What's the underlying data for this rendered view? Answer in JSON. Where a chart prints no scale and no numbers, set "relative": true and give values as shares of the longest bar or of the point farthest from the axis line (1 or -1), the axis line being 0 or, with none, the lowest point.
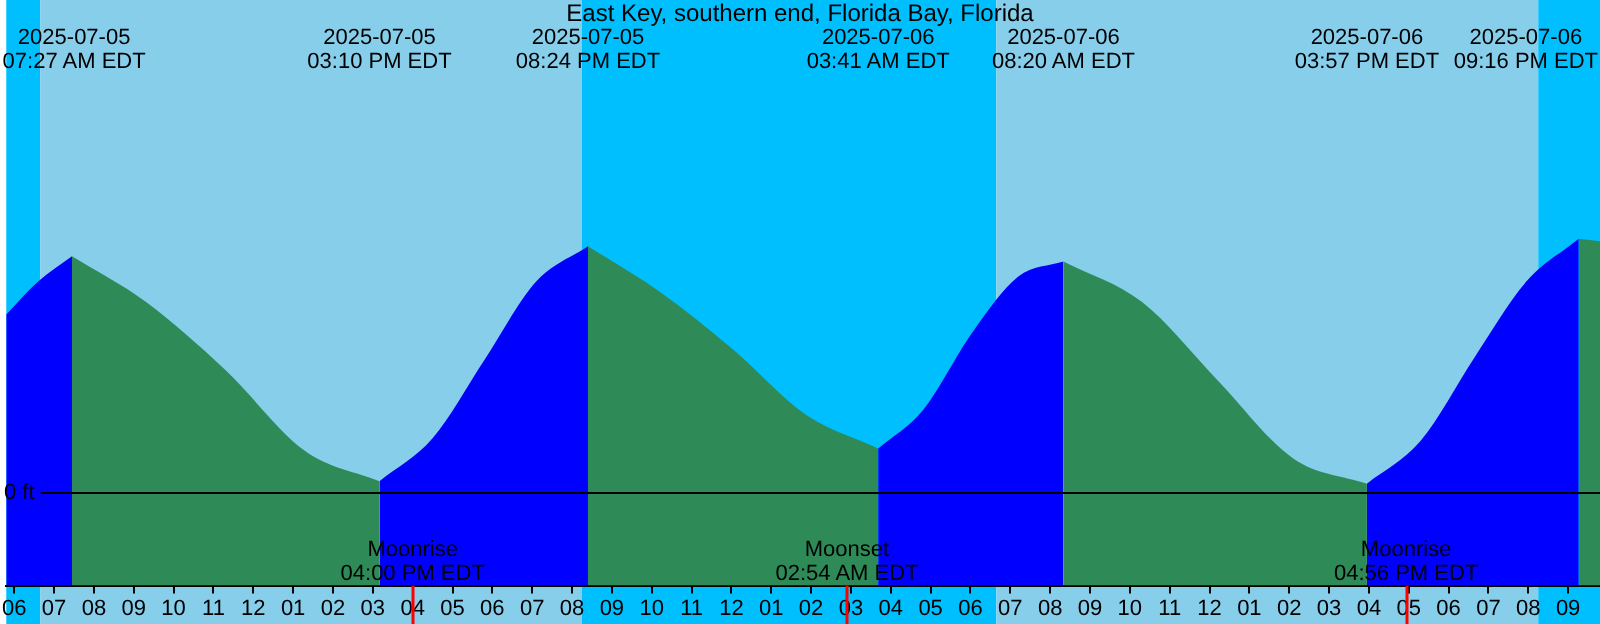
{
  "chart_data": {
    "type": "area",
    "title": "East Key, southern end, Florida Bay, Florida",
    "relative": true,
    "xlim": [
      "2025-07-05T05:48",
      "2025-07-06T21:48"
    ],
    "xticks": [
      {
        "value": "2025-07-05T06:00",
        "label": "06"
      },
      {
        "value": "2025-07-05T07:00",
        "label": "07"
      },
      {
        "value": "2025-07-05T08:00",
        "label": "08"
      },
      {
        "value": "2025-07-05T09:00",
        "label": "09"
      },
      {
        "value": "2025-07-05T10:00",
        "label": "10"
      },
      {
        "value": "2025-07-05T11:00",
        "label": "11"
      },
      {
        "value": "2025-07-05T12:00",
        "label": "12"
      },
      {
        "value": "2025-07-05T13:00",
        "label": "01"
      },
      {
        "value": "2025-07-05T14:00",
        "label": "02"
      },
      {
        "value": "2025-07-05T15:00",
        "label": "03"
      },
      {
        "value": "2025-07-05T16:00",
        "label": "04"
      },
      {
        "value": "2025-07-05T17:00",
        "label": "05"
      },
      {
        "value": "2025-07-05T18:00",
        "label": "06"
      },
      {
        "value": "2025-07-05T19:00",
        "label": "07"
      },
      {
        "value": "2025-07-05T20:00",
        "label": "08"
      },
      {
        "value": "2025-07-05T21:00",
        "label": "09"
      },
      {
        "value": "2025-07-05T22:00",
        "label": "10"
      },
      {
        "value": "2025-07-05T23:00",
        "label": "11"
      },
      {
        "value": "2025-07-06T00:00",
        "label": "12"
      },
      {
        "value": "2025-07-06T01:00",
        "label": "01"
      },
      {
        "value": "2025-07-06T02:00",
        "label": "02"
      },
      {
        "value": "2025-07-06T03:00",
        "label": "03"
      },
      {
        "value": "2025-07-06T04:00",
        "label": "04"
      },
      {
        "value": "2025-07-06T05:00",
        "label": "05"
      },
      {
        "value": "2025-07-06T06:00",
        "label": "06"
      },
      {
        "value": "2025-07-06T07:00",
        "label": "07"
      },
      {
        "value": "2025-07-06T08:00",
        "label": "08"
      },
      {
        "value": "2025-07-06T09:00",
        "label": "09"
      },
      {
        "value": "2025-07-06T10:00",
        "label": "10"
      },
      {
        "value": "2025-07-06T11:00",
        "label": "11"
      },
      {
        "value": "2025-07-06T12:00",
        "label": "12"
      },
      {
        "value": "2025-07-06T13:00",
        "label": "01"
      },
      {
        "value": "2025-07-06T14:00",
        "label": "02"
      },
      {
        "value": "2025-07-06T15:00",
        "label": "03"
      },
      {
        "value": "2025-07-06T16:00",
        "label": "04"
      },
      {
        "value": "2025-07-06T17:00",
        "label": "05"
      },
      {
        "value": "2025-07-06T18:00",
        "label": "06"
      },
      {
        "value": "2025-07-06T19:00",
        "label": "07"
      },
      {
        "value": "2025-07-06T20:00",
        "label": "08"
      },
      {
        "value": "2025-07-06T21:00",
        "label": "09"
      }
    ],
    "series": [
      {
        "color": "#0000ff",
        "x": [
          "2025-07-05T05:48",
          "2025-07-05T06:36",
          "2025-07-05T07:27",
          "2025-07-05T11:00",
          "2025-07-05T15:10",
          "2025-07-05T16:30",
          "2025-07-05T17:48",
          "2025-07-05T19:06",
          "2025-07-05T20:24",
          "2025-07-06T00:00",
          "2025-07-06T03:41",
          "2025-07-06T04:48",
          "2025-07-06T06:03",
          "2025-07-06T07:12",
          "2025-07-06T08:20",
          "2025-07-06T12:00",
          "2025-07-06T15:57",
          "2025-07-06T17:18",
          "2025-07-06T18:39",
          "2025-07-06T19:57",
          "2025-07-06T21:16"
        ],
        "values": [
          0.7,
          0.83,
          0.93,
          null,
          0.04,
          0.21,
          0.52,
          0.83,
          0.97,
          null,
          0.17,
          0.32,
          0.63,
          0.85,
          0.91,
          null,
          0.03,
          0.2,
          0.53,
          0.83,
          1.0
        ]
      },
      {
        "color": "#2e8b57",
        "x": [
          "2025-07-05T07:27",
          "2025-07-05T09:18",
          "2025-07-05T11:18",
          "2025-07-05T13:18",
          "2025-07-05T15:10",
          "2025-07-05T18:00",
          "2025-07-05T20:24",
          "2025-07-05T22:12",
          "2025-07-06T00:03",
          "2025-07-06T01:54",
          "2025-07-06T03:41",
          "2025-07-06T06:00",
          "2025-07-06T08:20",
          "2025-07-06T10:18",
          "2025-07-06T12:12",
          "2025-07-06T14:06",
          "2025-07-06T15:57",
          "2025-07-06T19:00",
          "2025-07-06T21:16",
          "2025-07-06T21:48"
        ],
        "values": [
          0.93,
          0.75,
          0.48,
          0.16,
          0.04,
          null,
          0.97,
          0.79,
          0.56,
          0.3,
          0.17,
          null,
          0.91,
          0.75,
          0.44,
          0.13,
          0.03,
          null,
          1.0,
          0.99
        ]
      }
    ],
    "bands": [
      {
        "axis": "x",
        "from": "2025-07-05T05:48",
        "to": "2025-07-05T06:39",
        "color": "#00bfff"
      },
      {
        "axis": "x",
        "from": "2025-07-05T06:39",
        "to": "2025-07-05T20:15",
        "color": "#87ceeb"
      },
      {
        "axis": "x",
        "from": "2025-07-05T20:15",
        "to": "2025-07-06T06:39",
        "color": "#00bfff"
      },
      {
        "axis": "x",
        "from": "2025-07-06T06:39",
        "to": "2025-07-06T20:15",
        "color": "#87ceeb"
      },
      {
        "axis": "x",
        "from": "2025-07-06T20:15",
        "to": "2025-07-06T21:48",
        "color": "#00bfff"
      }
    ],
    "ref_lines": [
      {
        "axis": "y",
        "value": 0,
        "label": "0 ft",
        "color": "#000000"
      },
      {
        "axis": "x",
        "value": "2025-07-05T16:00",
        "label": "Moonrise\n04:00 PM EDT",
        "color": "#ff0000"
      },
      {
        "axis": "x",
        "value": "2025-07-06T02:54",
        "label": "Moonset\n02:54 AM EDT",
        "color": "#ff0000"
      },
      {
        "axis": "x",
        "value": "2025-07-06T16:56",
        "label": "Moonrise\n04:56 PM EDT",
        "color": "#ff0000"
      }
    ],
    "annotations": [
      "2025-07-05\n07:27 AM EDT",
      "2025-07-05\n03:10 PM EDT",
      "2025-07-05\n08:24 PM EDT",
      "2025-07-06\n03:41 AM EDT",
      "2025-07-06\n08:20 AM EDT",
      "2025-07-06\n03:57 PM EDT",
      "2025-07-06\n09:16 PM EDT"
    ],
    "grid": false,
    "legend": false
  }
}
